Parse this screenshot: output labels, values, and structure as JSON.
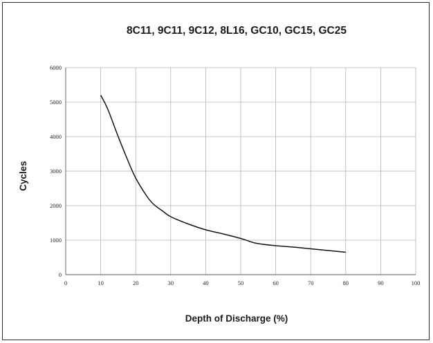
{
  "chart_data": {
    "type": "line",
    "title": "8C11, 9C11, 9C12, 8L16, GC10, GC15, GC25",
    "xlabel": "Depth of Discharge (%)",
    "ylabel": "Cycles",
    "xlim": [
      0,
      100
    ],
    "ylim": [
      0,
      6000
    ],
    "x_ticks": [
      0,
      10,
      20,
      30,
      40,
      50,
      60,
      70,
      80,
      90,
      100
    ],
    "y_ticks": [
      0,
      1000,
      2000,
      3000,
      4000,
      5000,
      6000
    ],
    "grid": true,
    "series": [
      {
        "x": [
          10,
          12,
          15,
          18,
          20,
          23,
          25,
          28,
          30,
          35,
          40,
          45,
          50,
          53,
          55,
          60,
          65,
          70,
          75,
          80
        ],
        "y": [
          5200,
          4800,
          4000,
          3250,
          2800,
          2300,
          2050,
          1820,
          1680,
          1470,
          1300,
          1180,
          1050,
          950,
          900,
          840,
          800,
          750,
          700,
          650
        ]
      }
    ]
  }
}
